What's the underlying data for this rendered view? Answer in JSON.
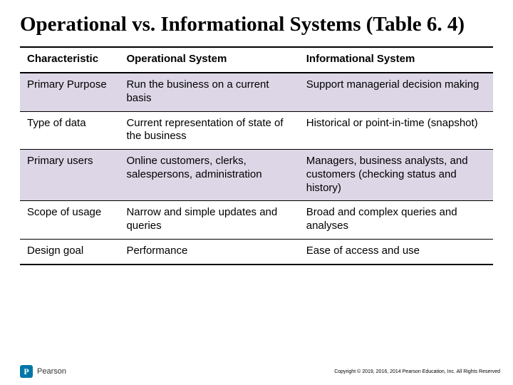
{
  "title": "Operational vs. Informational Systems (Table 6. 4)",
  "table": {
    "type": "table",
    "background_color": "#ffffff",
    "shade_color": "#dcd6e6",
    "border_color": "#000000",
    "header_fontsize": 15,
    "cell_fontsize": 15,
    "col_widths_pct": [
      21,
      38,
      41
    ],
    "columns": [
      "Characteristic",
      "Operational System",
      "Informational System"
    ],
    "rows": [
      {
        "shaded": true,
        "cells": [
          "Primary Purpose",
          "Run the business on a current basis",
          "Support managerial decision making"
        ]
      },
      {
        "shaded": false,
        "cells": [
          "Type of data",
          "Current representation of state of the business",
          "Historical or point-in-time (snapshot)"
        ]
      },
      {
        "shaded": true,
        "cells": [
          "Primary users",
          "Online customers, clerks, salespersons, administration",
          "Managers, business analysts, and customers (checking status and history)"
        ]
      },
      {
        "shaded": false,
        "cells": [
          "Scope of usage",
          "Narrow and simple updates and queries",
          "Broad and complex queries and analyses"
        ]
      },
      {
        "shaded": false,
        "cells": [
          "Design goal",
          "Performance",
          "Ease of access and use"
        ]
      }
    ]
  },
  "footer": {
    "publisher": "Pearson",
    "logo_bg": "#0076a8",
    "copyright": "Copyright © 2019, 2016, 2014 Pearson Education, Inc. All Rights Reserved"
  }
}
